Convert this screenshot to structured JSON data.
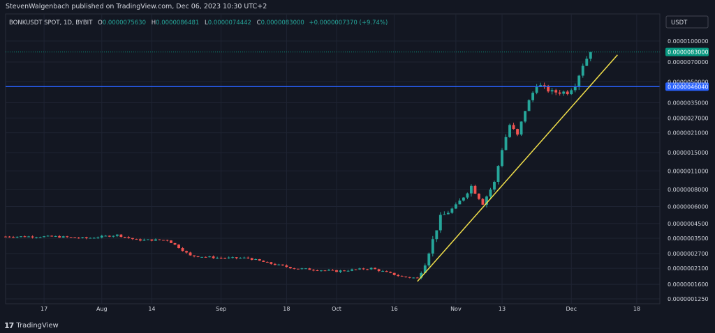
{
  "header": {
    "published": "StevenWalgenbach published on TradingView.com, Dec 06, 2023 10:30 UTC+2"
  },
  "legend": {
    "symbol": "BONKUSDT SPOT, 1D, BYBIT",
    "o_label": "O",
    "o": "0.0000075630",
    "h_label": "H",
    "h": "0.0000086481",
    "l_label": "L",
    "l": "0.0000074442",
    "c_label": "C",
    "c": "0.0000083000",
    "change": "+0.0000007370 (+9.74%)"
  },
  "currency_badge": "USDT",
  "footer": {
    "brand_mark": "17",
    "brand_name": "TradingView"
  },
  "colors": {
    "bg": "#131722",
    "grid": "#1f2433",
    "up": "#26a69a",
    "down": "#ef5350",
    "text": "#d1d4dc",
    "price_line": "#2962ff",
    "trend_line": "#f2e04b",
    "current": "#089981"
  },
  "chart_data": {
    "type": "candlestick",
    "y_scale": "log",
    "yticks": [
      {
        "v": 1e-05,
        "label": "0.0000100000"
      },
      {
        "v": 7e-06,
        "label": "0.0000070000"
      },
      {
        "v": 5e-06,
        "label": "0.0000050000"
      },
      {
        "v": 3.5e-06,
        "label": "0.0000035000"
      },
      {
        "v": 2.7e-06,
        "label": "0.0000027000"
      },
      {
        "v": 2.1e-06,
        "label": "0.0000021000"
      },
      {
        "v": 1.5e-06,
        "label": "0.0000015000"
      },
      {
        "v": 1.1e-06,
        "label": "0.0000011000"
      },
      {
        "v": 8e-07,
        "label": "0.0000008000"
      },
      {
        "v": 6e-07,
        "label": "0.0000006000"
      },
      {
        "v": 4.5e-07,
        "label": "0.0000004500"
      },
      {
        "v": 3.5e-07,
        "label": "0.0000003500"
      },
      {
        "v": 2.7e-07,
        "label": "0.0000002700"
      },
      {
        "v": 2.1e-07,
        "label": "0.0000002100"
      },
      {
        "v": 1.6e-07,
        "label": "0.0000001600"
      },
      {
        "v": 1.25e-07,
        "label": "0.0000001250"
      }
    ],
    "xticks": [
      {
        "date": "2023-07-17",
        "label": "17"
      },
      {
        "date": "2023-08-01",
        "label": "Aug"
      },
      {
        "date": "2023-08-14",
        "label": "14"
      },
      {
        "date": "2023-09-01",
        "label": "Sep"
      },
      {
        "date": "2023-09-18",
        "label": "18"
      },
      {
        "date": "2023-10-01",
        "label": "Oct"
      },
      {
        "date": "2023-10-16",
        "label": "16"
      },
      {
        "date": "2023-11-01",
        "label": "Nov"
      },
      {
        "date": "2023-11-13",
        "label": "13"
      },
      {
        "date": "2023-12-01",
        "label": "Dec"
      },
      {
        "date": "2023-12-18",
        "label": "18"
      }
    ],
    "x_range": [
      "2023-07-07",
      "2023-12-24"
    ],
    "horizontal_line": {
      "v": 4.604e-06,
      "label": "0.0000046040"
    },
    "current_price": {
      "v": 8.3e-06,
      "label": "0.0000083000"
    },
    "trend_line": {
      "from": {
        "date": "2023-10-22",
        "v": 1.68e-07
      },
      "to": {
        "date": "2023-12-13",
        "v": 7.9e-06
      }
    },
    "keypoints": [
      {
        "date": "2023-07-07",
        "v": 3.6e-07
      },
      {
        "date": "2023-07-20",
        "v": 3.6e-07
      },
      {
        "date": "2023-07-28",
        "v": 3.5e-07
      },
      {
        "date": "2023-08-05",
        "v": 3.7e-07
      },
      {
        "date": "2023-08-10",
        "v": 3.4e-07
      },
      {
        "date": "2023-08-18",
        "v": 3.4e-07
      },
      {
        "date": "2023-08-21",
        "v": 3e-07
      },
      {
        "date": "2023-08-24",
        "v": 2.6e-07
      },
      {
        "date": "2023-09-01",
        "v": 2.5e-07
      },
      {
        "date": "2023-09-08",
        "v": 2.5e-07
      },
      {
        "date": "2023-09-13",
        "v": 2.3e-07
      },
      {
        "date": "2023-09-20",
        "v": 2.1e-07
      },
      {
        "date": "2023-10-01",
        "v": 2e-07
      },
      {
        "date": "2023-10-10",
        "v": 2.1e-07
      },
      {
        "date": "2023-10-18",
        "v": 1.82e-07
      },
      {
        "date": "2023-10-22",
        "v": 1.78e-07
      },
      {
        "date": "2023-10-24",
        "v": 2.3e-07
      },
      {
        "date": "2023-10-26",
        "v": 3.4e-07
      },
      {
        "date": "2023-10-28",
        "v": 5e-07
      },
      {
        "date": "2023-11-01",
        "v": 6e-07
      },
      {
        "date": "2023-11-05",
        "v": 8.5e-07
      },
      {
        "date": "2023-11-08",
        "v": 6.4e-07
      },
      {
        "date": "2023-11-11",
        "v": 9e-07
      },
      {
        "date": "2023-11-13",
        "v": 1.6e-06
      },
      {
        "date": "2023-11-15",
        "v": 2.4e-06
      },
      {
        "date": "2023-11-17",
        "v": 2e-06
      },
      {
        "date": "2023-11-19",
        "v": 3.1e-06
      },
      {
        "date": "2023-11-22",
        "v": 4.8e-06
      },
      {
        "date": "2023-11-26",
        "v": 4.2e-06
      },
      {
        "date": "2023-11-30",
        "v": 4.2e-06
      },
      {
        "date": "2023-12-02",
        "v": 4.8e-06
      },
      {
        "date": "2023-12-04",
        "v": 6.7e-06
      },
      {
        "date": "2023-12-06",
        "v": 8.3e-06
      }
    ]
  }
}
